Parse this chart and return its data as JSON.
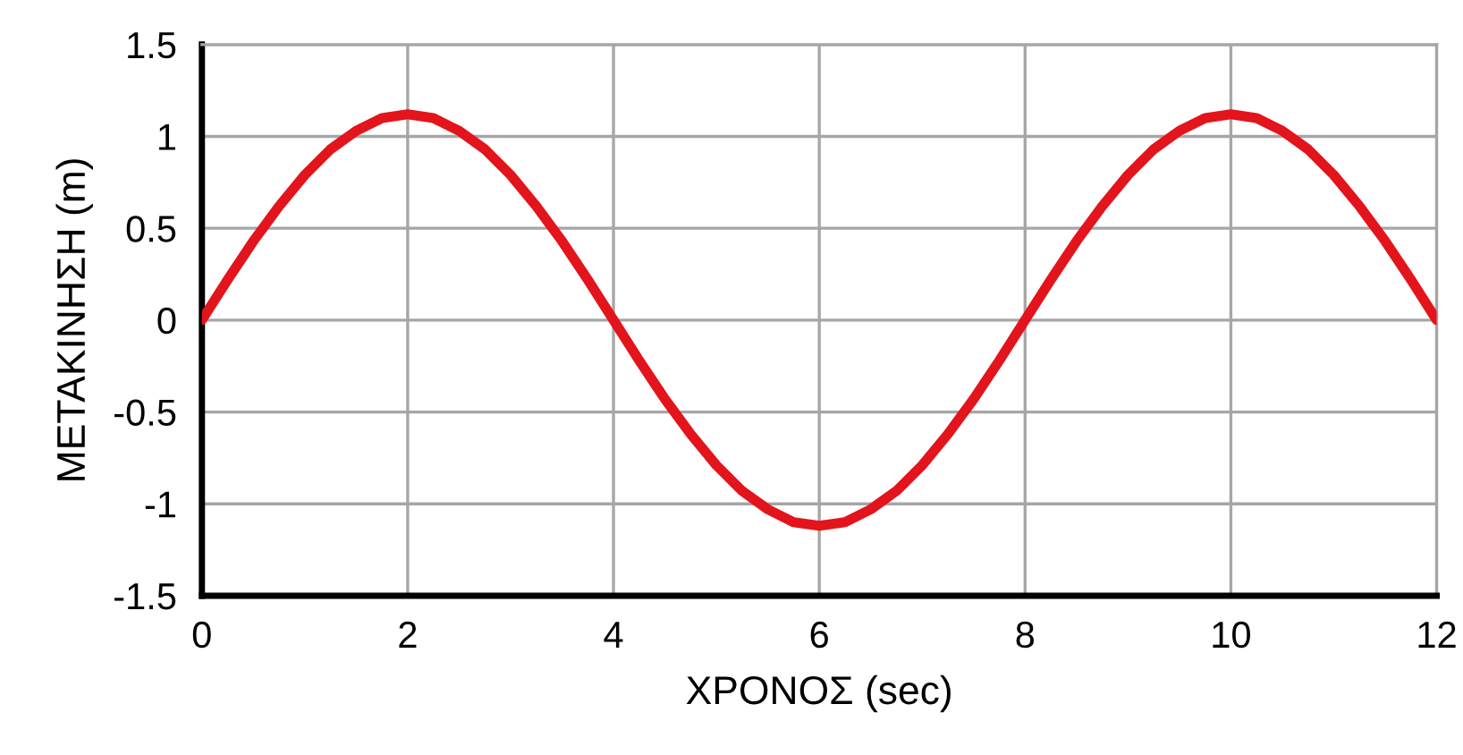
{
  "chart_data": {
    "type": "line",
    "xlabel": "ΧΡΟΝΟΣ (sec)",
    "ylabel": "ΜΕΤΑΚΙΝΗΣΗ (m)",
    "x": [
      0,
      0.25,
      0.5,
      0.75,
      1,
      1.25,
      1.5,
      1.75,
      2,
      2.25,
      2.5,
      2.75,
      3,
      3.25,
      3.5,
      3.75,
      4,
      4.25,
      4.5,
      4.75,
      5,
      5.25,
      5.5,
      5.75,
      6,
      6.25,
      6.5,
      6.75,
      7,
      7.25,
      7.5,
      7.75,
      8,
      8.25,
      8.5,
      8.75,
      9,
      9.25,
      9.5,
      9.75,
      10,
      10.25,
      10.5,
      10.75,
      11,
      11.25,
      11.5,
      11.75,
      12
    ],
    "series": [
      {
        "color": "#e3141b",
        "values": [
          0,
          0.22,
          0.43,
          0.62,
          0.79,
          0.93,
          1.03,
          1.1,
          1.12,
          1.1,
          1.03,
          0.93,
          0.79,
          0.62,
          0.43,
          0.22,
          0,
          -0.22,
          -0.43,
          -0.62,
          -0.79,
          -0.93,
          -1.03,
          -1.1,
          -1.12,
          -1.1,
          -1.03,
          -0.93,
          -0.79,
          -0.62,
          -0.43,
          -0.22,
          0,
          0.22,
          0.43,
          0.62,
          0.79,
          0.93,
          1.03,
          1.1,
          1.12,
          1.1,
          1.03,
          0.93,
          0.79,
          0.62,
          0.43,
          0.22,
          0
        ]
      }
    ],
    "xlim": [
      0,
      12
    ],
    "xticks": [
      0,
      2,
      4,
      6,
      8,
      10,
      12
    ],
    "ylim": [
      -1.5,
      1.5
    ],
    "yticks": [
      -1.5,
      -1,
      -0.5,
      0,
      0.5,
      1,
      1.5
    ],
    "grid": true,
    "marker": "none",
    "line_style": "solid"
  }
}
